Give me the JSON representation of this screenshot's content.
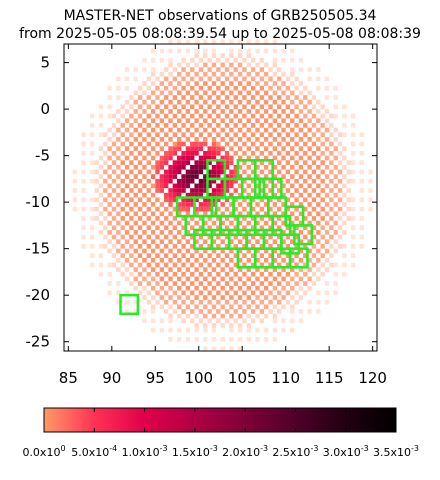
{
  "title_line1": "MASTER-NET observations of GRB250505.34",
  "title_line2": "from 2025-05-05 08:08:39.54 up to 2025-05-08 08:08:39",
  "chart_data": {
    "type": "heatmap",
    "title": "MASTER-NET observations of GRB250505.34",
    "subtitle": "from 2025-05-05 08:08:39.54 up to 2025-05-08 08:08:39",
    "xlim": [
      84.5,
      120.5
    ],
    "ylim": [
      -26.0,
      7.0
    ],
    "x_ticks": [
      85,
      90,
      95,
      100,
      105,
      110,
      115,
      120
    ],
    "y_ticks": [
      5,
      0,
      -5,
      -10,
      -15,
      -20,
      -25
    ],
    "grid": false,
    "probability_region": {
      "outer_center": [
        102.5,
        -9.0
      ],
      "outer_radius": 15.0,
      "peak_center": [
        99.5,
        -7.5
      ],
      "peak_value": 0.0022
    },
    "colorbar": {
      "min": 0.0,
      "max": 0.0035,
      "tick_values": [
        0.0,
        0.0005,
        0.001,
        0.0015,
        0.002,
        0.0025,
        0.003,
        0.0035
      ],
      "tick_labels": [
        "0.0x10^0",
        "5.0x10^-4",
        "1.0x10^-3",
        "1.5x10^-3",
        "2.0x10^-3",
        "2.5x10^-3",
        "3.0x10^-3",
        "3.5x10^-3"
      ],
      "colors": [
        "#ff9966",
        "#ff3355",
        "#e0004a",
        "#b00045",
        "#800038",
        "#50002a",
        "#220010",
        "#000000"
      ],
      "placement": "bottom"
    },
    "observed_fields": {
      "color": "#22ee22",
      "fields": [
        [
          102.0,
          -6.5
        ],
        [
          105.5,
          -6.5
        ],
        [
          107.5,
          -6.5
        ],
        [
          102.0,
          -8.5
        ],
        [
          104.0,
          -8.5
        ],
        [
          106.0,
          -8.5
        ],
        [
          107.5,
          -8.5
        ],
        [
          108.5,
          -8.5
        ],
        [
          98.5,
          -10.5
        ],
        [
          100.5,
          -10.5
        ],
        [
          103.0,
          -10.5
        ],
        [
          105.0,
          -10.5
        ],
        [
          107.0,
          -10.5
        ],
        [
          109.0,
          -10.5
        ],
        [
          111.0,
          -11.5
        ],
        [
          99.5,
          -12.5
        ],
        [
          101.5,
          -12.5
        ],
        [
          103.5,
          -12.5
        ],
        [
          105.5,
          -12.5
        ],
        [
          107.5,
          -12.5
        ],
        [
          109.5,
          -12.5
        ],
        [
          112.0,
          -13.5
        ],
        [
          100.5,
          -14.0
        ],
        [
          102.5,
          -14.0
        ],
        [
          104.5,
          -14.0
        ],
        [
          106.5,
          -14.0
        ],
        [
          108.5,
          -14.0
        ],
        [
          110.5,
          -14.5
        ],
        [
          105.5,
          -16.0
        ],
        [
          107.5,
          -16.0
        ],
        [
          109.5,
          -16.0
        ],
        [
          111.5,
          -16.0
        ],
        [
          92.0,
          -21.0
        ]
      ]
    }
  }
}
